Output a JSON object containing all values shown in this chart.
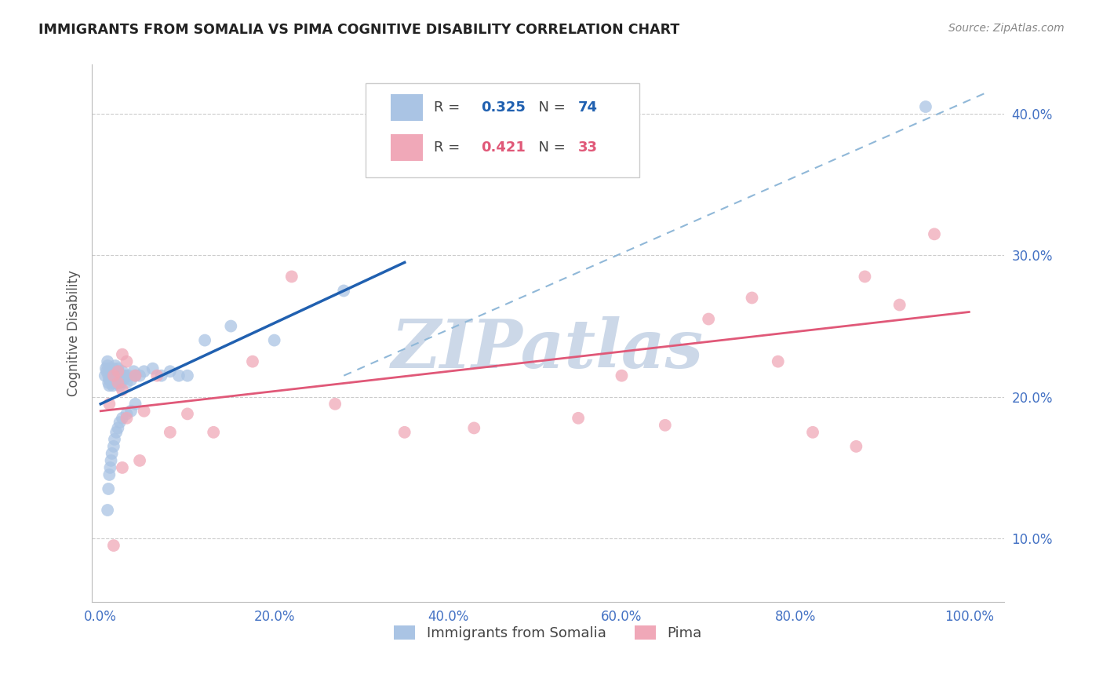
{
  "title": "IMMIGRANTS FROM SOMALIA VS PIMA COGNITIVE DISABILITY CORRELATION CHART",
  "source": "Source: ZipAtlas.com",
  "xlabel": "",
  "ylabel": "Cognitive Disability",
  "watermark": "ZIPatlas",
  "legend_labels": [
    "Immigrants from Somalia",
    "Pima"
  ],
  "r_blue": 0.325,
  "n_blue": 74,
  "r_pink": 0.421,
  "n_pink": 33,
  "xlim": [
    -0.01,
    1.04
  ],
  "ylim": [
    0.055,
    0.435
  ],
  "xticks": [
    0.0,
    0.2,
    0.4,
    0.6,
    0.8,
    1.0
  ],
  "yticks": [
    0.1,
    0.2,
    0.3,
    0.4
  ],
  "ytick_labels": [
    "10.0%",
    "20.0%",
    "30.0%",
    "40.0%"
  ],
  "xtick_labels": [
    "0.0%",
    "20.0%",
    "40.0%",
    "60.0%",
    "80.0%",
    "100.0%"
  ],
  "blue_color": "#aac4e4",
  "blue_line_color": "#2060b0",
  "pink_color": "#f0a8b8",
  "pink_line_color": "#e05878",
  "dashed_line_color": "#90b8d8",
  "title_color": "#222222",
  "axis_label_color": "#555555",
  "tick_color": "#4472c4",
  "grid_color": "#cccccc",
  "bg_color": "#ffffff",
  "watermark_color": "#ccd8e8",
  "blue_scatter_x": [
    0.005,
    0.006,
    0.007,
    0.008,
    0.008,
    0.009,
    0.009,
    0.01,
    0.01,
    0.01,
    0.011,
    0.011,
    0.012,
    0.012,
    0.013,
    0.013,
    0.014,
    0.014,
    0.015,
    0.015,
    0.015,
    0.016,
    0.016,
    0.017,
    0.017,
    0.018,
    0.018,
    0.019,
    0.019,
    0.02,
    0.02,
    0.02,
    0.021,
    0.021,
    0.022,
    0.022,
    0.023,
    0.023,
    0.024,
    0.025,
    0.026,
    0.028,
    0.03,
    0.032,
    0.035,
    0.038,
    0.04,
    0.045,
    0.05,
    0.06,
    0.07,
    0.08,
    0.09,
    0.1,
    0.12,
    0.15,
    0.04,
    0.035,
    0.03,
    0.025,
    0.022,
    0.02,
    0.018,
    0.016,
    0.015,
    0.013,
    0.012,
    0.011,
    0.01,
    0.009,
    0.008,
    0.2,
    0.28,
    0.95
  ],
  "blue_scatter_y": [
    0.215,
    0.22,
    0.218,
    0.225,
    0.222,
    0.21,
    0.215,
    0.218,
    0.212,
    0.208,
    0.22,
    0.215,
    0.212,
    0.218,
    0.21,
    0.215,
    0.208,
    0.212,
    0.22,
    0.215,
    0.218,
    0.21,
    0.215,
    0.222,
    0.218,
    0.215,
    0.21,
    0.215,
    0.212,
    0.22,
    0.215,
    0.218,
    0.21,
    0.215,
    0.212,
    0.208,
    0.215,
    0.21,
    0.215,
    0.218,
    0.212,
    0.215,
    0.21,
    0.215,
    0.212,
    0.218,
    0.215,
    0.215,
    0.218,
    0.22,
    0.215,
    0.218,
    0.215,
    0.215,
    0.24,
    0.25,
    0.195,
    0.19,
    0.188,
    0.185,
    0.182,
    0.178,
    0.175,
    0.17,
    0.165,
    0.16,
    0.155,
    0.15,
    0.145,
    0.135,
    0.12,
    0.24,
    0.275,
    0.405
  ],
  "pink_scatter_x": [
    0.01,
    0.015,
    0.02,
    0.025,
    0.02,
    0.025,
    0.03,
    0.04,
    0.05,
    0.065,
    0.08,
    0.1,
    0.13,
    0.175,
    0.22,
    0.27,
    0.35,
    0.43,
    0.55,
    0.6,
    0.65,
    0.7,
    0.75,
    0.78,
    0.82,
    0.87,
    0.88,
    0.92,
    0.96,
    0.03,
    0.025,
    0.045,
    0.015
  ],
  "pink_scatter_y": [
    0.195,
    0.215,
    0.21,
    0.23,
    0.218,
    0.205,
    0.225,
    0.215,
    0.19,
    0.215,
    0.175,
    0.188,
    0.175,
    0.225,
    0.285,
    0.195,
    0.175,
    0.178,
    0.185,
    0.215,
    0.18,
    0.255,
    0.27,
    0.225,
    0.175,
    0.165,
    0.285,
    0.265,
    0.315,
    0.185,
    0.15,
    0.155,
    0.095
  ],
  "blue_line_x": [
    0.0,
    0.35
  ],
  "blue_line_y": [
    0.195,
    0.295
  ],
  "pink_line_x": [
    0.0,
    1.0
  ],
  "pink_line_y": [
    0.19,
    0.26
  ],
  "dashed_line_x": [
    0.28,
    1.02
  ],
  "dashed_line_y": [
    0.215,
    0.415
  ]
}
